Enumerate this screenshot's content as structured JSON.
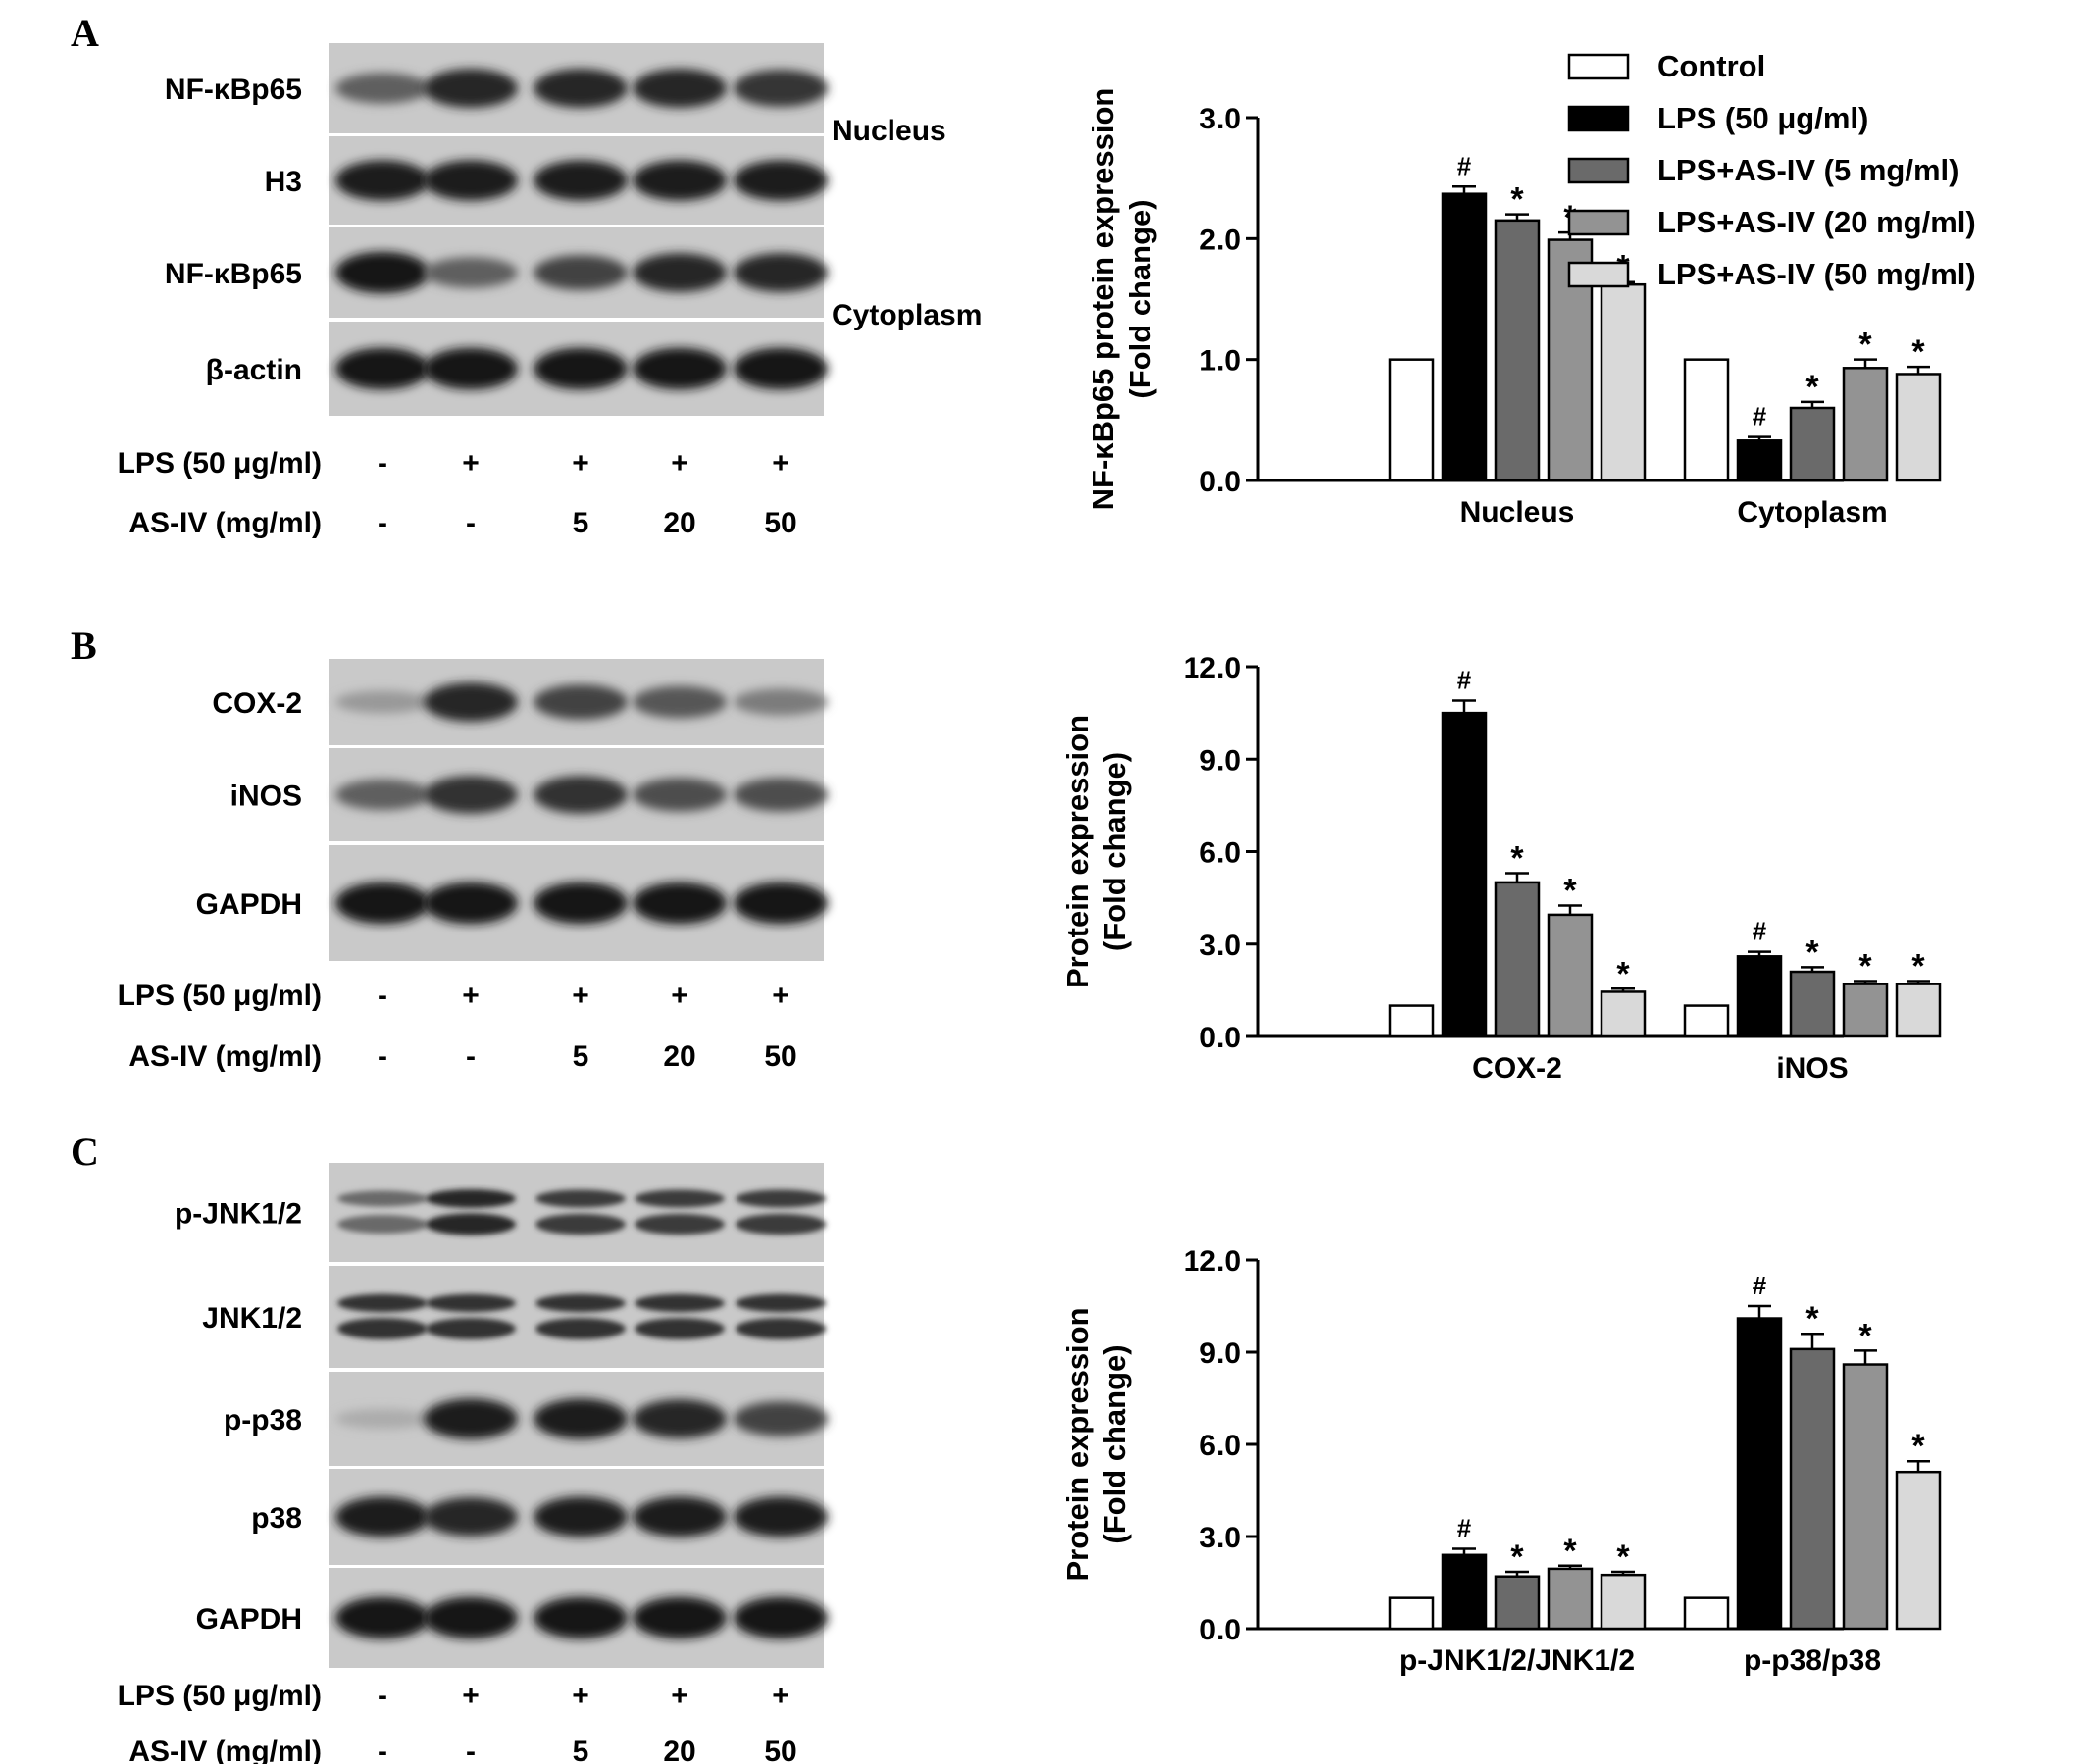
{
  "figure": {
    "panels": [
      {
        "letter": "A",
        "blot_groups": [
          {
            "bands": [
              {
                "label": "NF-κBp65",
                "intensity": [
                  0.55,
                  0.85,
                  0.85,
                  0.85,
                  0.78
                ],
                "doublet": false
              },
              {
                "label": "H3",
                "intensity": [
                  0.9,
                  0.9,
                  0.9,
                  0.9,
                  0.9
                ],
                "doublet": false
              }
            ],
            "compartment": "Nucleus"
          },
          {
            "bands": [
              {
                "label": "NF-κBp65",
                "intensity": [
                  0.95,
                  0.55,
                  0.7,
                  0.85,
                  0.85
                ],
                "doublet": false
              },
              {
                "label": "β-actin",
                "intensity": [
                  0.95,
                  0.95,
                  0.95,
                  0.95,
                  0.95
                ],
                "doublet": false
              }
            ],
            "compartment": "Cytoplasm"
          }
        ],
        "treatments": [
          {
            "label": "LPS (50 μg/ml)",
            "values": [
              "-",
              "+",
              "+",
              "+",
              "+"
            ]
          },
          {
            "label": "AS-IV (mg/ml)",
            "values": [
              "-",
              "-",
              "5",
              "20",
              "50"
            ]
          }
        ]
      },
      {
        "letter": "B",
        "blot_groups": [
          {
            "bands": [
              {
                "label": "COX-2",
                "intensity": [
                  0.25,
                  0.85,
                  0.7,
                  0.6,
                  0.4
                ],
                "doublet": false
              },
              {
                "label": "iNOS",
                "intensity": [
                  0.55,
                  0.8,
                  0.8,
                  0.65,
                  0.65
                ],
                "doublet": false
              },
              {
                "label": "GAPDH",
                "intensity": [
                  0.95,
                  0.95,
                  0.95,
                  0.95,
                  0.95
                ],
                "doublet": false
              }
            ],
            "compartment": ""
          }
        ],
        "treatments": [
          {
            "label": "LPS (50 μg/ml)",
            "values": [
              "-",
              "+",
              "+",
              "+",
              "+"
            ]
          },
          {
            "label": "AS-IV (mg/ml)",
            "values": [
              "-",
              "-",
              "5",
              "20",
              "50"
            ]
          }
        ]
      },
      {
        "letter": "C",
        "blot_groups": [
          {
            "bands": [
              {
                "label": "p-JNK1/2",
                "intensity": [
                  0.5,
                  0.85,
                  0.75,
                  0.75,
                  0.75
                ],
                "doublet": true
              },
              {
                "label": "JNK1/2",
                "intensity": [
                  0.8,
                  0.8,
                  0.8,
                  0.8,
                  0.8
                ],
                "doublet": true
              },
              {
                "label": "p-p38",
                "intensity": [
                  0.15,
                  0.9,
                  0.9,
                  0.85,
                  0.7
                ],
                "doublet": false
              },
              {
                "label": "p38",
                "intensity": [
                  0.9,
                  0.85,
                  0.9,
                  0.9,
                  0.9
                ],
                "doublet": false
              },
              {
                "label": "GAPDH",
                "intensity": [
                  0.95,
                  0.95,
                  0.95,
                  0.95,
                  0.95
                ],
                "doublet": false
              }
            ],
            "compartment": ""
          }
        ],
        "treatments": [
          {
            "label": "LPS (50 μg/ml)",
            "values": [
              "-",
              "+",
              "+",
              "+",
              "+"
            ]
          },
          {
            "label": "AS-IV (mg/ml)",
            "values": [
              "-",
              "-",
              "5",
              "20",
              "50"
            ]
          }
        ]
      }
    ],
    "legend": {
      "entries": [
        "Control",
        "LPS (50 μg/ml)",
        "LPS+AS-IV (5 mg/ml)",
        "LPS+AS-IV (20 mg/ml)",
        "LPS+AS-IV (50 mg/ml)"
      ],
      "placement": "top-right",
      "colors": [
        "#ffffff",
        "#000000",
        "#6a6a6a",
        "#939393",
        "#d9d9d9"
      ]
    }
  },
  "chart_data": [
    {
      "type": "bar",
      "panel": "A",
      "ylabel_lines": [
        "NF-κBp65 protein expression",
        "(Fold change)"
      ],
      "categories": [
        "Nucleus",
        "Cytoplasm"
      ],
      "ylim": [
        0,
        3.0
      ],
      "yticks": [
        "0.0",
        "1.0",
        "2.0",
        "3.0"
      ],
      "series": [
        {
          "name": "Control",
          "values": [
            1.0,
            1.0
          ],
          "errors": [
            0,
            0
          ],
          "marks": [
            "",
            ""
          ]
        },
        {
          "name": "LPS (50 μg/ml)",
          "values": [
            2.37,
            0.33
          ],
          "errors": [
            0.06,
            0.03
          ],
          "marks": [
            "#",
            "#"
          ]
        },
        {
          "name": "LPS+AS-IV (5 mg/ml)",
          "values": [
            2.15,
            0.6
          ],
          "errors": [
            0.05,
            0.05
          ],
          "marks": [
            "*",
            "*"
          ]
        },
        {
          "name": "LPS+AS-IV (20 mg/ml)",
          "values": [
            1.99,
            0.93
          ],
          "errors": [
            0.06,
            0.07
          ],
          "marks": [
            "*",
            "*"
          ]
        },
        {
          "name": "LPS+AS-IV (50 mg/ml)",
          "values": [
            1.62,
            0.88
          ],
          "errors": [
            0.02,
            0.06
          ],
          "marks": [
            "*",
            "*"
          ]
        }
      ]
    },
    {
      "type": "bar",
      "panel": "B",
      "ylabel_lines": [
        "Protein expression",
        "(Fold change)"
      ],
      "categories": [
        "COX-2",
        "iNOS"
      ],
      "ylim": [
        0,
        12.0
      ],
      "yticks": [
        "0.0",
        "3.0",
        "6.0",
        "9.0",
        "12.0"
      ],
      "series": [
        {
          "name": "Control",
          "values": [
            1.0,
            1.0
          ],
          "errors": [
            0,
            0
          ],
          "marks": [
            "",
            ""
          ]
        },
        {
          "name": "LPS (50 μg/ml)",
          "values": [
            10.5,
            2.6
          ],
          "errors": [
            0.4,
            0.15
          ],
          "marks": [
            "#",
            "#"
          ]
        },
        {
          "name": "LPS+AS-IV (5 mg/ml)",
          "values": [
            5.0,
            2.1
          ],
          "errors": [
            0.3,
            0.15
          ],
          "marks": [
            "*",
            "*"
          ]
        },
        {
          "name": "LPS+AS-IV (20 mg/ml)",
          "values": [
            3.95,
            1.7
          ],
          "errors": [
            0.3,
            0.1
          ],
          "marks": [
            "*",
            "*"
          ]
        },
        {
          "name": "LPS+AS-IV (50 mg/ml)",
          "values": [
            1.45,
            1.7
          ],
          "errors": [
            0.1,
            0.1
          ],
          "marks": [
            "*",
            "*"
          ]
        }
      ]
    },
    {
      "type": "bar",
      "panel": "C",
      "ylabel_lines": [
        "Protein expression",
        "(Fold change)"
      ],
      "categories": [
        "p-JNK1/2/JNK1/2",
        "p-p38/p38"
      ],
      "ylim": [
        0,
        12.0
      ],
      "yticks": [
        "0.0",
        "3.0",
        "6.0",
        "9.0",
        "12.0"
      ],
      "series": [
        {
          "name": "Control",
          "values": [
            1.0,
            1.0
          ],
          "errors": [
            0,
            0
          ],
          "marks": [
            "",
            ""
          ]
        },
        {
          "name": "LPS (50 μg/ml)",
          "values": [
            2.4,
            10.1
          ],
          "errors": [
            0.2,
            0.4
          ],
          "marks": [
            "#",
            "#"
          ]
        },
        {
          "name": "LPS+AS-IV (5 mg/ml)",
          "values": [
            1.7,
            9.1
          ],
          "errors": [
            0.15,
            0.5
          ],
          "marks": [
            "*",
            "*"
          ]
        },
        {
          "name": "LPS+AS-IV (20 mg/ml)",
          "values": [
            1.95,
            8.6
          ],
          "errors": [
            0.1,
            0.45
          ],
          "marks": [
            "*",
            "*"
          ]
        },
        {
          "name": "LPS+AS-IV (50 mg/ml)",
          "values": [
            1.75,
            5.1
          ],
          "errors": [
            0.1,
            0.35
          ],
          "marks": [
            "*",
            "*"
          ]
        }
      ]
    }
  ]
}
